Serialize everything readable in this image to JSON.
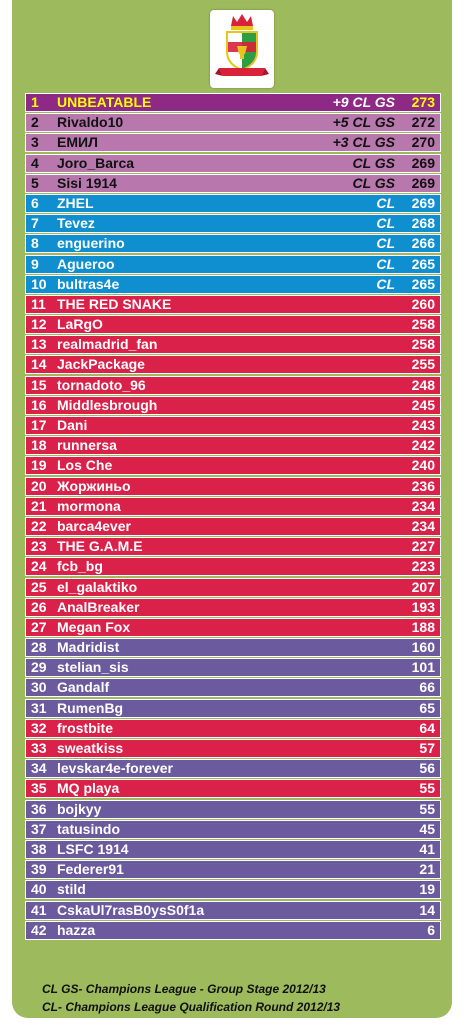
{
  "logo": {
    "icon": "club-crest-icon",
    "colors": [
      "#ffffff",
      "#2e9e44",
      "#d9213a",
      "#e8c51e"
    ]
  },
  "rows": [
    {
      "rank": "1",
      "name": "UNBEATABLE",
      "qual": "+9 CL GS",
      "points": "273",
      "color": "purple"
    },
    {
      "rank": "2",
      "name": "Rivaldo10",
      "qual": "+5 CL GS",
      "points": "272",
      "color": "lilac"
    },
    {
      "rank": "3",
      "name": "ЕМИЛ",
      "qual": "+3 CL GS",
      "points": "270",
      "color": "lilac"
    },
    {
      "rank": "4",
      "name": "Joro_Barca",
      "qual": "CL GS",
      "points": "269",
      "color": "lilac"
    },
    {
      "rank": "5",
      "name": "Sisi 1914",
      "qual": "CL GS",
      "points": "269",
      "color": "lilac"
    },
    {
      "rank": "6",
      "name": "ZHEL",
      "qual": "CL",
      "points": "269",
      "color": "blue"
    },
    {
      "rank": "7",
      "name": "Tevez",
      "qual": "CL",
      "points": "268",
      "color": "blue"
    },
    {
      "rank": "8",
      "name": "enguerino",
      "qual": "CL",
      "points": "266",
      "color": "blue"
    },
    {
      "rank": "9",
      "name": "Agueroo",
      "qual": "CL",
      "points": "265",
      "color": "blue"
    },
    {
      "rank": "10",
      "name": "bultras4e",
      "qual": "CL",
      "points": "265",
      "color": "blue"
    },
    {
      "rank": "11",
      "name": " THE RED SNAKE",
      "qual": "",
      "points": "260",
      "color": "red"
    },
    {
      "rank": "12",
      "name": "LaRgO",
      "qual": "",
      "points": "258",
      "color": "red"
    },
    {
      "rank": "13",
      "name": "realmadrid_fan",
      "qual": "",
      "points": "258",
      "color": "red"
    },
    {
      "rank": "14",
      "name": "JackPackage",
      "qual": "",
      "points": "255",
      "color": "red"
    },
    {
      "rank": "15",
      "name": "tornadoto_96",
      "qual": "",
      "points": "248",
      "color": "red"
    },
    {
      "rank": "16",
      "name": " Middlesbrough",
      "qual": "",
      "points": "245",
      "color": "red"
    },
    {
      "rank": "17",
      "name": "Dani",
      "qual": "",
      "points": "243",
      "color": "red"
    },
    {
      "rank": "18",
      "name": "runnersa",
      "qual": "",
      "points": "242",
      "color": "red"
    },
    {
      "rank": "19",
      "name": "Los Che",
      "qual": "",
      "points": "240",
      "color": "red"
    },
    {
      "rank": "20",
      "name": "Жоржиньо",
      "qual": "",
      "points": "236",
      "color": "red"
    },
    {
      "rank": "21",
      "name": "mormona",
      "qual": "",
      "points": "234",
      "color": "red"
    },
    {
      "rank": "22",
      "name": "barca4ever",
      "qual": "",
      "points": "234",
      "color": "red"
    },
    {
      "rank": "23",
      "name": "THE G.A.M.E",
      "qual": "",
      "points": "227",
      "color": "red"
    },
    {
      "rank": "24",
      "name": "fcb_bg",
      "qual": "",
      "points": "223",
      "color": "red"
    },
    {
      "rank": "25",
      "name": "el_galaktiko",
      "qual": "",
      "points": "207",
      "color": "red"
    },
    {
      "rank": "26",
      "name": "AnalBreaker",
      "qual": "",
      "points": "193",
      "color": "red"
    },
    {
      "rank": "27",
      "name": "Megan Fox",
      "qual": "",
      "points": "188",
      "color": "red"
    },
    {
      "rank": "28",
      "name": "Madridist",
      "qual": "",
      "points": "160",
      "color": "violet"
    },
    {
      "rank": "29",
      "name": "stelian_sis",
      "qual": "",
      "points": "101",
      "color": "violet"
    },
    {
      "rank": "30",
      "name": "Gandalf",
      "qual": "",
      "points": "66",
      "color": "violet"
    },
    {
      "rank": "31",
      "name": "RumenBg",
      "qual": "",
      "points": "65",
      "color": "violet"
    },
    {
      "rank": "32",
      "name": "frostbite",
      "qual": "",
      "points": "64",
      "color": "red"
    },
    {
      "rank": "33",
      "name": "sweatkiss",
      "qual": "",
      "points": "57",
      "color": "red"
    },
    {
      "rank": "34",
      "name": "levskar4e-forever",
      "qual": "",
      "points": "56",
      "color": "violet"
    },
    {
      "rank": "35",
      "name": "MQ playa",
      "qual": "",
      "points": "55",
      "color": "red"
    },
    {
      "rank": "36",
      "name": "bojkyy",
      "qual": "",
      "points": "55",
      "color": "violet"
    },
    {
      "rank": "37",
      "name": "tatusindo",
      "qual": "",
      "points": "45",
      "color": "violet"
    },
    {
      "rank": "38",
      "name": "LSFC 1914",
      "qual": "",
      "points": "41",
      "color": "violet"
    },
    {
      "rank": "39",
      "name": "Federer91",
      "qual": "",
      "points": "21",
      "color": "violet"
    },
    {
      "rank": "40",
      "name": "stild",
      "qual": "",
      "points": "19",
      "color": "violet"
    },
    {
      "rank": "41",
      "name": "CskaUl7rasB0ysS0f1a",
      "qual": "",
      "points": "14",
      "color": "violet"
    },
    {
      "rank": "42",
      "name": "hazza",
      "qual": "",
      "points": "6",
      "color": "violet"
    }
  ],
  "footer": {
    "line1": "CL GS- Champions League - Group Stage 2012/13",
    "line2": "CL- Champions League Qualification Round 2012/13"
  }
}
